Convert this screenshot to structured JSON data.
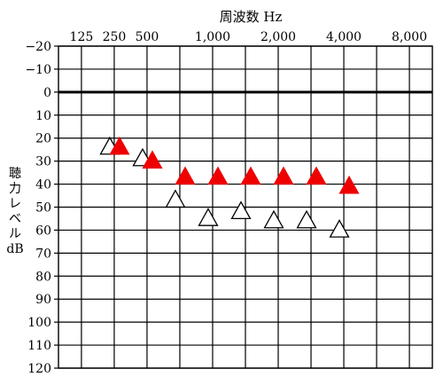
{
  "chart_data": {
    "type": "scatter",
    "title": "周波数 Hz",
    "xlabel": "周波数 Hz",
    "ylabel": "聴力レベル dB",
    "ylabel_lines": [
      "聴",
      "力",
      "レ",
      "ベ",
      "ル",
      "dB"
    ],
    "grid": true,
    "x_positions": [
      125,
      250,
      500,
      750,
      1000,
      1500,
      2000,
      3000,
      4000,
      6000,
      8000
    ],
    "x_tick_values": [
      125,
      250,
      500,
      1000,
      2000,
      4000,
      8000
    ],
    "x_tick_labels": [
      "125",
      "250",
      "500",
      "1,000",
      "2,000",
      "4,000",
      "8,000"
    ],
    "ylim": [
      -20,
      120
    ],
    "y_ticks": [
      -20,
      -10,
      0,
      10,
      20,
      30,
      40,
      50,
      60,
      70,
      80,
      90,
      100,
      110,
      120
    ],
    "y_tick_labels": [
      "−20",
      "−10",
      "0",
      "10",
      "20",
      "30",
      "40",
      "50",
      "60",
      "70",
      "80",
      "90",
      "100",
      "110",
      "120"
    ],
    "reference_line": 0,
    "series": [
      {
        "marker": "open-triangle",
        "color": "#000000",
        "points": [
          {
            "x": 250,
            "y": 24
          },
          {
            "x": 500,
            "y": 29
          },
          {
            "x": 750,
            "y": 47
          },
          {
            "x": 1000,
            "y": 55
          },
          {
            "x": 1500,
            "y": 52
          },
          {
            "x": 2000,
            "y": 56
          },
          {
            "x": 3000,
            "y": 56
          },
          {
            "x": 4000,
            "y": 60
          }
        ]
      },
      {
        "marker": "filled-triangle",
        "color": "#ee0000",
        "points": [
          {
            "x": 250,
            "y": 24
          },
          {
            "x": 500,
            "y": 30
          },
          {
            "x": 750,
            "y": 37
          },
          {
            "x": 1000,
            "y": 37
          },
          {
            "x": 1500,
            "y": 37
          },
          {
            "x": 2000,
            "y": 37
          },
          {
            "x": 3000,
            "y": 37
          },
          {
            "x": 4000,
            "y": 41
          }
        ]
      }
    ]
  }
}
